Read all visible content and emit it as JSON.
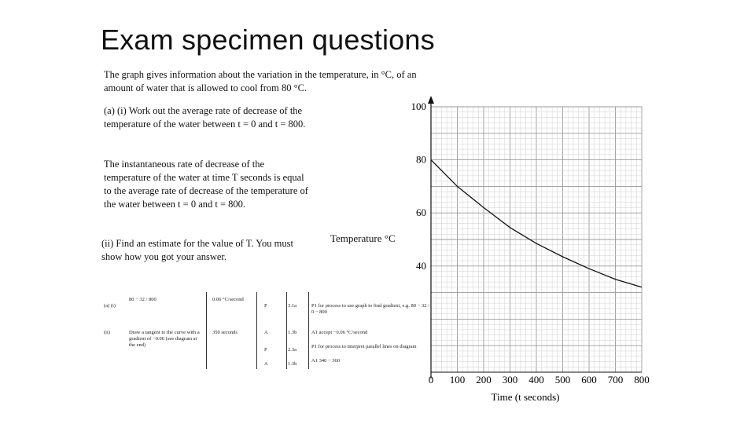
{
  "slide": {
    "title": "Exam specimen questions",
    "intro": "The graph gives information about the variation in the temperature, in °C, of an amount of water that is allowed to cool from 80 °C.",
    "part_a_i": "(a) (i)  Work out the average rate of decrease of the temperature of the water between t = 0 and t = 800.",
    "statement": "The instantaneous rate of decrease of the temperature of the water at time T seconds is equal to the average rate of decrease of the temperature of the water between t = 0 and t = 800.",
    "part_a_ii": "(ii)  Find an estimate for the value of T. You must show how you got your answer."
  },
  "mark_scheme": {
    "rows": [
      {
        "q": "(a) (i)",
        "working": "80 − 32 / 800",
        "answer": "0.06 °C/second",
        "mark": "P",
        "ao": "3.1a",
        "notes": "P1 for process to use graph to find gradient, e.g. 80 − 32 / 0 − 800"
      },
      {
        "q": "",
        "working": "",
        "answer": "",
        "mark": "A",
        "ao": "1.3b",
        "notes": "A1 accept −0.06 °C/second"
      },
      {
        "q": "(ii)",
        "working": "Draw a tangent to the curve with a gradient of −0.06 (see diagram at the end)",
        "answer": "350 seconds",
        "mark": "P",
        "ao": "2.3a",
        "notes": "P1 for process to interpret parallel lines on diagram"
      },
      {
        "q": "",
        "working": "",
        "answer": "",
        "mark": "A",
        "ao": "1.3b",
        "notes": "A1 340 − 360"
      }
    ]
  },
  "chart_data": {
    "type": "line",
    "ylabel": "Temperature °C",
    "xlabel": "Time (t seconds)",
    "xlim": [
      0,
      800
    ],
    "ylim": [
      0,
      100
    ],
    "x_ticks": [
      0,
      100,
      200,
      300,
      400,
      500,
      600,
      700,
      800
    ],
    "y_ticks": [
      100,
      80,
      60,
      40
    ],
    "grid": true,
    "series": [
      {
        "x": [
          0,
          100,
          200,
          300,
          400,
          500,
          600,
          700,
          800
        ],
        "y": [
          80,
          70,
          62,
          54.5,
          48.5,
          43.5,
          39,
          35,
          32
        ]
      }
    ]
  }
}
